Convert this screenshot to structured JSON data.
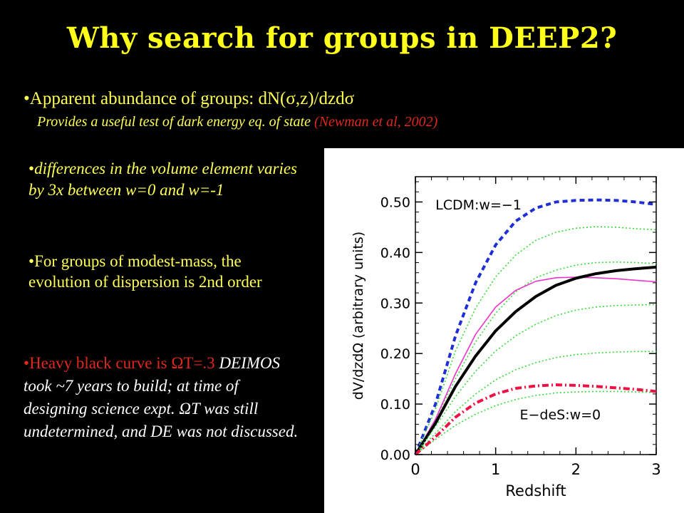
{
  "slide": {
    "title": "Why search for groups in DEEP2?",
    "bullet1": {
      "bullet": "•",
      "text": "Apparent abundance of groups: dN(σ,z)/dzdσ",
      "subtext": "Provides a useful test of dark energy eq. of state",
      "reference": "(Newman et al, 2002)"
    },
    "bullet2": {
      "bullet": "•",
      "text": "differences in the volume element varies by 3x between w=0 and w=-1"
    },
    "bullet3": {
      "bullet": "•",
      "text": "For groups of modest-mass, the evolution of dispersion is 2nd order"
    },
    "bullet4": {
      "bullet": "•",
      "red_text": "Heavy black curve is ΩT=.3",
      "text": "DEIMOS took ~7 years to build; at time of designing science expt. ΩT was still undetermined, and DE was not discussed."
    }
  },
  "colors": {
    "title": "#ffff1a",
    "text_yellow": "#ffff55",
    "text_red": "#e0281c",
    "text_white": "#ffffff",
    "panel_bg": "#ffffff"
  },
  "chart_data": {
    "type": "line",
    "title": "",
    "xlabel": "Redshift",
    "ylabel": "dV/dzdΩ  (arbitrary units)",
    "xlim": [
      0,
      3
    ],
    "ylim": [
      0,
      0.55
    ],
    "x_ticks": [
      "0",
      "1",
      "2",
      "3"
    ],
    "y_ticks": [
      "0.00",
      "0.10",
      "0.20",
      "0.30",
      "0.40",
      "0.50"
    ],
    "annotations": [
      "LCDM:w=−1",
      "E−deS:w=0"
    ],
    "grid": false,
    "x": [
      0,
      0.25,
      0.5,
      0.75,
      1.0,
      1.25,
      1.5,
      1.75,
      2.0,
      2.25,
      2.5,
      2.75,
      3.0
    ],
    "series": [
      {
        "color": "#1f2fd6",
        "style": "dashed",
        "width": "heavy",
        "values": [
          0.0,
          0.1,
          0.235,
          0.34,
          0.415,
          0.462,
          0.488,
          0.5,
          0.503,
          0.504,
          0.503,
          0.5,
          0.495
        ]
      },
      {
        "color": "#33dd33",
        "style": "dotted",
        "width": "thin",
        "values": [
          0.0,
          0.09,
          0.205,
          0.29,
          0.352,
          0.395,
          0.424,
          0.44,
          0.448,
          0.451,
          0.45,
          0.447,
          0.445
        ]
      },
      {
        "color": "#33dd33",
        "style": "dotted",
        "width": "thin",
        "values": [
          0.0,
          0.07,
          0.15,
          0.223,
          0.28,
          0.322,
          0.35,
          0.365,
          0.375,
          0.38,
          0.381,
          0.38,
          0.378
        ]
      },
      {
        "color": "#ee33cc",
        "style": "solid",
        "width": "thin",
        "values": [
          0.0,
          0.07,
          0.16,
          0.238,
          0.292,
          0.325,
          0.343,
          0.35,
          0.351,
          0.35,
          0.348,
          0.345,
          0.342
        ]
      },
      {
        "color": "#000000",
        "style": "solid",
        "width": "heavy",
        "values": [
          0.0,
          0.062,
          0.135,
          0.195,
          0.245,
          0.283,
          0.313,
          0.335,
          0.349,
          0.358,
          0.364,
          0.368,
          0.371
        ]
      },
      {
        "color": "#33dd33",
        "style": "dotted",
        "width": "thin",
        "values": [
          0.0,
          0.055,
          0.115,
          0.165,
          0.205,
          0.235,
          0.258,
          0.275,
          0.286,
          0.292,
          0.295,
          0.296,
          0.297
        ]
      },
      {
        "color": "#33dd33",
        "style": "dotted",
        "width": "thin",
        "values": [
          0.0,
          0.042,
          0.085,
          0.12,
          0.148,
          0.168,
          0.182,
          0.192,
          0.198,
          0.201,
          0.203,
          0.204,
          0.204
        ]
      },
      {
        "color": "#33dd33",
        "style": "dotted",
        "width": "thin",
        "values": [
          0.0,
          0.03,
          0.058,
          0.08,
          0.097,
          0.109,
          0.117,
          0.122,
          0.124,
          0.125,
          0.125,
          0.124,
          0.123
        ]
      },
      {
        "color": "#ee1144",
        "style": "dashdot",
        "width": "heavy",
        "values": [
          0.0,
          0.035,
          0.074,
          0.102,
          0.12,
          0.131,
          0.136,
          0.138,
          0.137,
          0.135,
          0.132,
          0.129,
          0.125
        ]
      }
    ]
  }
}
